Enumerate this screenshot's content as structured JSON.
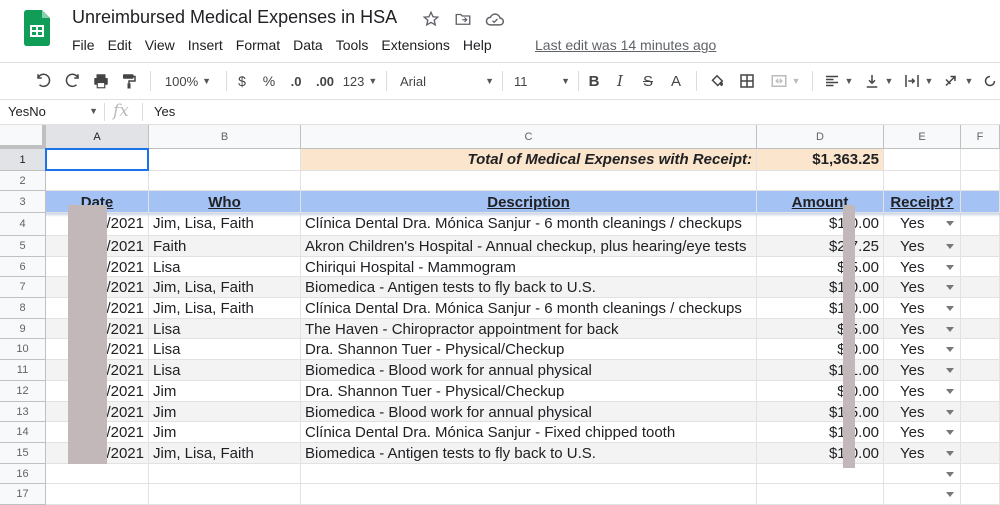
{
  "document": {
    "title": "Unreimbursed Medical Expenses in HSA",
    "last_edit": "Last edit was 14 minutes ago"
  },
  "title_icons": [
    "star-icon",
    "move-to-folder-icon",
    "cloud-status-icon"
  ],
  "menu": [
    "File",
    "Edit",
    "View",
    "Insert",
    "Format",
    "Data",
    "Tools",
    "Extensions",
    "Help"
  ],
  "toolbar": {
    "zoom": "100%",
    "currency": "$",
    "percent": "%",
    "decrease_decimal": ".0",
    "increase_decimal": ".00",
    "more_formats": "123",
    "font": "Arial",
    "font_size": "11",
    "bold": "B",
    "italic": "I",
    "strikethrough": "S",
    "text_color": "A"
  },
  "formula_bar": {
    "name_box": "YesNo",
    "fx": "fx",
    "value": "Yes"
  },
  "columns": [
    "A",
    "B",
    "C",
    "D",
    "E",
    "F"
  ],
  "row_numbers": [
    "1",
    "2",
    "3",
    "4",
    "5",
    "6",
    "7",
    "8",
    "9",
    "10",
    "11",
    "12",
    "13",
    "14",
    "15",
    "16",
    "17"
  ],
  "total": {
    "label": "Total of Medical Expenses with Receipt:",
    "value": "$1,363.25"
  },
  "headers": {
    "date": "Date",
    "who": "Who",
    "description": "Description",
    "amount": "Amount",
    "receipt": "Receipt?"
  },
  "rows": [
    {
      "date": "/2021",
      "who": "Jim, Lisa, Faith",
      "description": "Clínica Dental Dra. Mónica Sanjur - 6 month cleanings / checkups",
      "amount": "$1 0.00",
      "receipt": "Yes"
    },
    {
      "date": "0/2021",
      "who": "Faith",
      "description": "Akron Children's Hospital - Annual checkup, plus hearing/eye tests",
      "amount": "$2 7.25",
      "receipt": "Yes"
    },
    {
      "date": "3/2021",
      "who": "Lisa",
      "description": "Chiriqui Hospital - Mammogram",
      "amount": "$ 5.00",
      "receipt": "Yes"
    },
    {
      "date": "/2021",
      "who": "Jim, Lisa, Faith",
      "description": "Biomedica - Antigen tests to fly back to U.S.",
      "amount": "$1 0.00",
      "receipt": "Yes"
    },
    {
      "date": "2/2021",
      "who": "Jim, Lisa, Faith",
      "description": "Clínica Dental Dra. Mónica Sanjur - 6 month cleanings / checkups",
      "amount": "$1 0.00",
      "receipt": "Yes"
    },
    {
      "date": "7/2021",
      "who": "Lisa",
      "description": "The Haven - Chiropractor appointment for back",
      "amount": "$ 5.00",
      "receipt": "Yes"
    },
    {
      "date": "1/2021",
      "who": "Lisa",
      "description": "Dra. Shannon Tuer - Physical/Checkup",
      "amount": "$ 0.00",
      "receipt": "Yes"
    },
    {
      "date": "7/2021",
      "who": "Lisa",
      "description": "Biomedica - Blood work for annual physical",
      "amount": "$1 1.00",
      "receipt": "Yes"
    },
    {
      "date": "3/2021",
      "who": "Jim",
      "description": "Dra. Shannon Tuer - Physical/Checkup",
      "amount": "$ 0.00",
      "receipt": "Yes"
    },
    {
      "date": "/2021",
      "who": "Jim",
      "description": "Biomedica - Blood work for annual physical",
      "amount": "$1 5.00",
      "receipt": "Yes"
    },
    {
      "date": "2/2021",
      "who": "Jim",
      "description": "Clínica Dental Dra. Mónica Sanjur - Fixed chipped tooth",
      "amount": "$1 0.00",
      "receipt": "Yes"
    },
    {
      "date": "0/2021",
      "who": "Jim, Lisa, Faith",
      "description": "Biomedica - Antigen tests to fly back to U.S.",
      "amount": "$1 0.00",
      "receipt": "Yes"
    }
  ],
  "colors": {
    "header_fill": "#a4c2f4",
    "total_fill": "#fce5cd",
    "selection": "#1a73e8",
    "sheets_green": "#0f9d58"
  }
}
